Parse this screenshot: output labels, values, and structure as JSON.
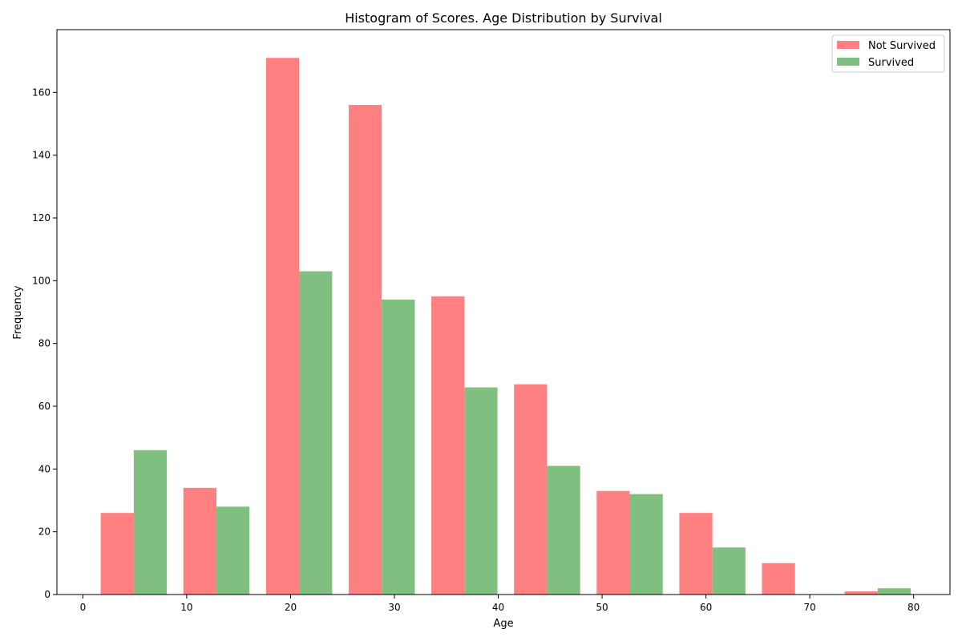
{
  "chart_data": {
    "type": "bar",
    "title": "Histogram of Scores. Age Distribution by Survival",
    "xlabel": "Age",
    "ylabel": "Frequency",
    "xlim": [
      -2.5,
      83.5
    ],
    "ylim": [
      0,
      180
    ],
    "x_ticks": [
      0,
      10,
      20,
      30,
      40,
      50,
      60,
      70,
      80
    ],
    "y_ticks": [
      0,
      20,
      40,
      60,
      80,
      100,
      120,
      140,
      160
    ],
    "bins": [
      [
        0.92,
        8.88
      ],
      [
        8.88,
        16.84
      ],
      [
        16.84,
        24.8
      ],
      [
        24.8,
        32.76
      ],
      [
        32.76,
        40.72
      ],
      [
        40.72,
        48.68
      ],
      [
        48.68,
        56.64
      ],
      [
        56.64,
        64.6
      ],
      [
        64.6,
        72.56
      ],
      [
        72.56,
        80.52
      ]
    ],
    "grid": false,
    "legend_position": "top-right",
    "series": [
      {
        "name": "Not Survived",
        "color": "#ff8080",
        "values": [
          26,
          34,
          171,
          156,
          95,
          67,
          33,
          26,
          10,
          1
        ]
      },
      {
        "name": "Survived",
        "color": "#80bf80",
        "values": [
          46,
          28,
          103,
          94,
          66,
          41,
          32,
          15,
          0,
          2
        ]
      }
    ]
  }
}
